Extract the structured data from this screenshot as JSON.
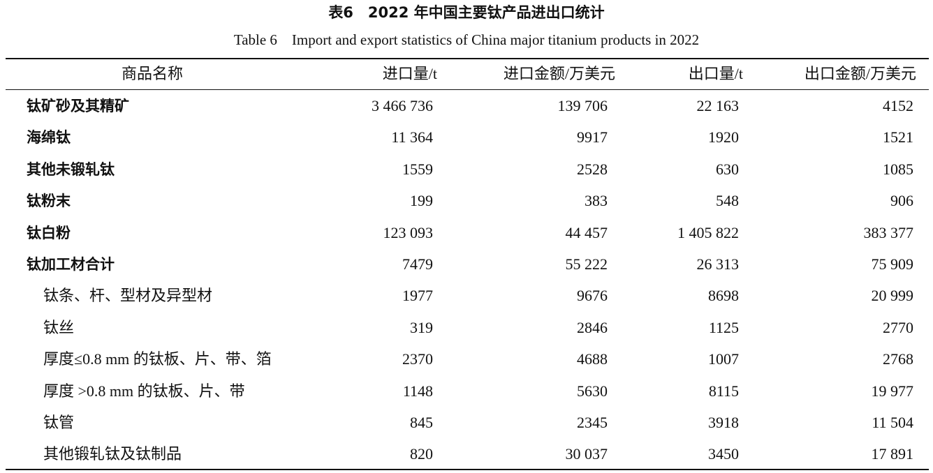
{
  "header": {
    "title": "表6　2022 年中国主要钛产品进出口统计",
    "subtitle": "Table 6　Import and export statistics of China major titanium products in 2022"
  },
  "table": {
    "columns": [
      "商品名称",
      "进口量/t",
      "进口金额/万美元",
      "出口量/t",
      "出口金额/万美元"
    ],
    "rows": [
      {
        "name": "钛矿砂及其精矿",
        "cells": [
          "3 466 736",
          "139 706",
          "22 163",
          "4152"
        ]
      },
      {
        "name": "海绵钛",
        "cells": [
          "11 364",
          "9917",
          "1920",
          "1521"
        ]
      },
      {
        "name": "其他未锻轧钛",
        "cells": [
          "1559",
          "2528",
          "630",
          "1085"
        ]
      },
      {
        "name": "钛粉末",
        "cells": [
          "199",
          "383",
          "548",
          "906"
        ]
      },
      {
        "name": "钛白粉",
        "cells": [
          "123 093",
          "44 457",
          "1 405 822",
          "383 377"
        ]
      },
      {
        "name": "钛加工材合计",
        "cells": [
          "7479",
          "55 222",
          "26 313",
          "75 909"
        ],
        "subrows": [
          {
            "name": "钛条、杆、型材及异型材",
            "cells": [
              "1977",
              "9676",
              "8698",
              "20 999"
            ]
          },
          {
            "name": "钛丝",
            "cells": [
              "319",
              "2846",
              "1125",
              "2770"
            ]
          },
          {
            "name": "厚度≤0.8 mm 的钛板、片、带、箔",
            "cells": [
              "2370",
              "4688",
              "1007",
              "2768"
            ]
          },
          {
            "name": "厚度 >0.8 mm 的钛板、片、带",
            "cells": [
              "1148",
              "5630",
              "8115",
              "19 977"
            ]
          },
          {
            "name": "钛管",
            "cells": [
              "845",
              "2345",
              "3918",
              "11 504"
            ]
          },
          {
            "name": "其他锻轧钛及钛制品",
            "cells": [
              "820",
              "30 037",
              "3450",
              "17 891"
            ]
          }
        ]
      }
    ]
  }
}
